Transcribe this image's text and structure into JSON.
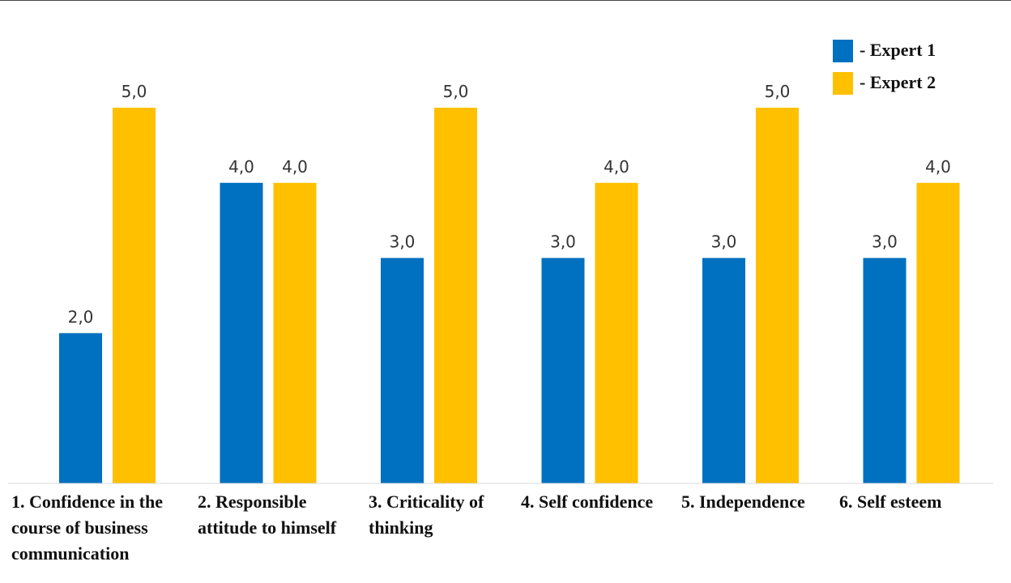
{
  "chart_data": {
    "type": "bar",
    "categories": [
      "1. Confidence in the course of business communication",
      "2. Responsible attitude to himself",
      "3. Criticality of thinking",
      "4. Self confidence",
      "5. Independence",
      "6. Self esteem"
    ],
    "series": [
      {
        "name": "Expert 1",
        "color": "#0070C0",
        "values": [
          2.0,
          4.0,
          3.0,
          3.0,
          3.0,
          3.0
        ],
        "labels": [
          "2,0",
          "4,0",
          "3,0",
          "3,0",
          "3,0",
          "3,0"
        ]
      },
      {
        "name": "Expert 2",
        "color": "#FFC000",
        "values": [
          5.0,
          4.0,
          5.0,
          4.0,
          5.0,
          4.0
        ],
        "labels": [
          "5,0",
          "4,0",
          "5,0",
          "4,0",
          "5,0",
          "4,0"
        ]
      }
    ],
    "ylim": [
      0,
      5
    ],
    "grid": false,
    "legend_position": "top-right"
  },
  "legend": {
    "items": [
      {
        "label": "- Expert 1",
        "color": "#0070C0"
      },
      {
        "label": "- Expert 2",
        "color": "#FFC000"
      }
    ]
  }
}
